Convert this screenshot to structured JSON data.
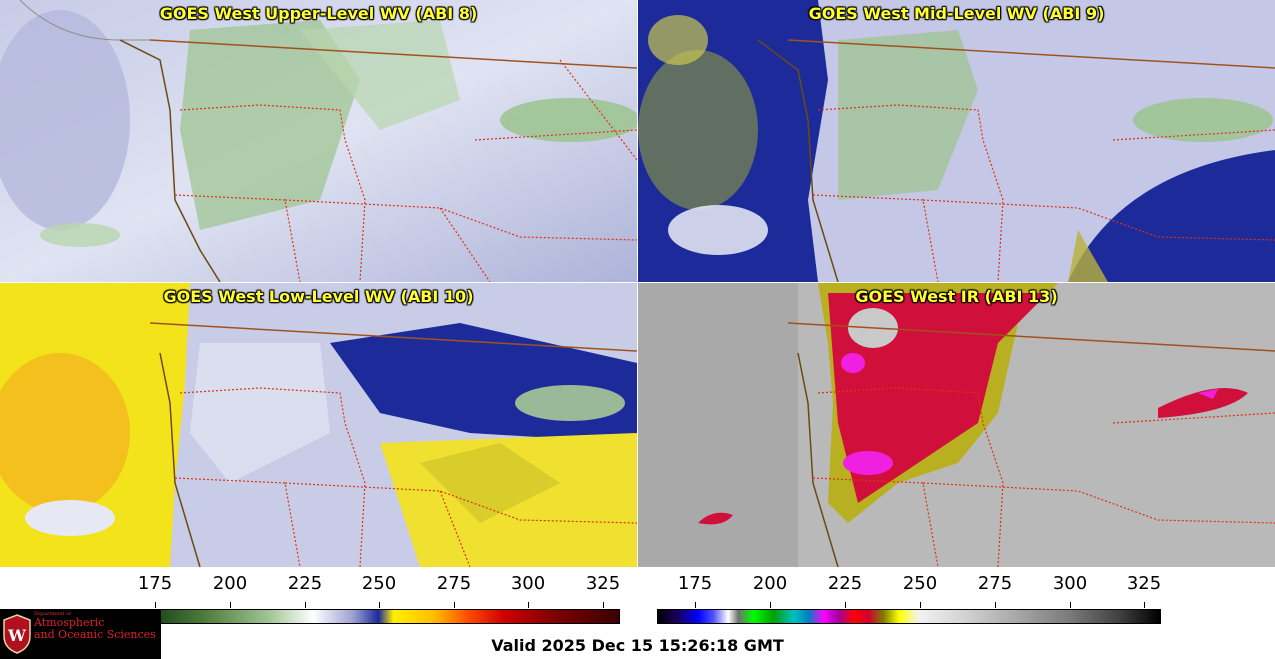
{
  "panels": [
    {
      "title": "GOES West Upper-Level WV (ABI 8)"
    },
    {
      "title": "GOES West Mid-Level WV (ABI 9)"
    },
    {
      "title": "GOES West Low-Level WV (ABI 10)"
    },
    {
      "title": "GOES West IR (ABI 13)"
    }
  ],
  "colorbars": [
    {
      "ticks": [
        "175",
        "200",
        "225",
        "250",
        "275",
        "300",
        "325"
      ]
    },
    {
      "ticks": [
        "175",
        "200",
        "225",
        "250",
        "275",
        "300",
        "325"
      ]
    }
  ],
  "valid_time": "Valid 2025 Dec 15 15:26:18 GMT",
  "logo": {
    "dept": "Department of",
    "line1": "Atmospheric",
    "line2": "and Oceanic Sciences"
  }
}
